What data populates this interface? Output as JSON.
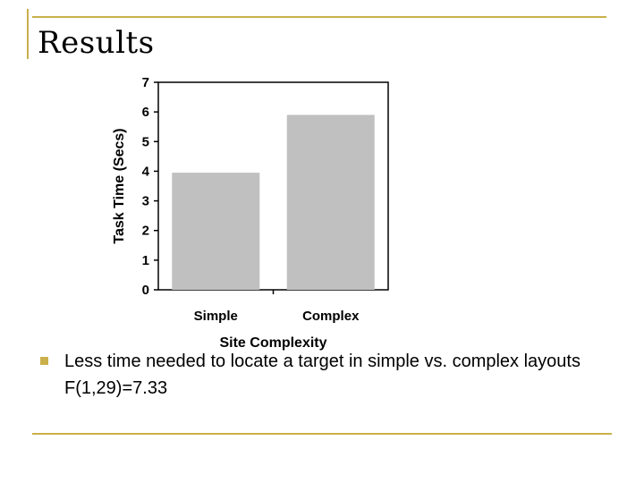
{
  "slide": {
    "title": "Results",
    "bullet": "Less time needed to locate a target in simple vs. complex layouts F(1,29)=7.33"
  },
  "colors": {
    "accent": "#c9b04a",
    "bar": "#c0c0c0",
    "axis": "#000000"
  },
  "chart_data": {
    "type": "bar",
    "categories": [
      "Simple",
      "Complex"
    ],
    "values": [
      3.95,
      5.9
    ],
    "title": "",
    "xlabel": "Site Complexity",
    "ylabel": "Task Time (Secs)",
    "ylim": [
      0,
      7
    ],
    "yticks": [
      0,
      1,
      2,
      3,
      4,
      5,
      6,
      7
    ],
    "grid": false
  }
}
